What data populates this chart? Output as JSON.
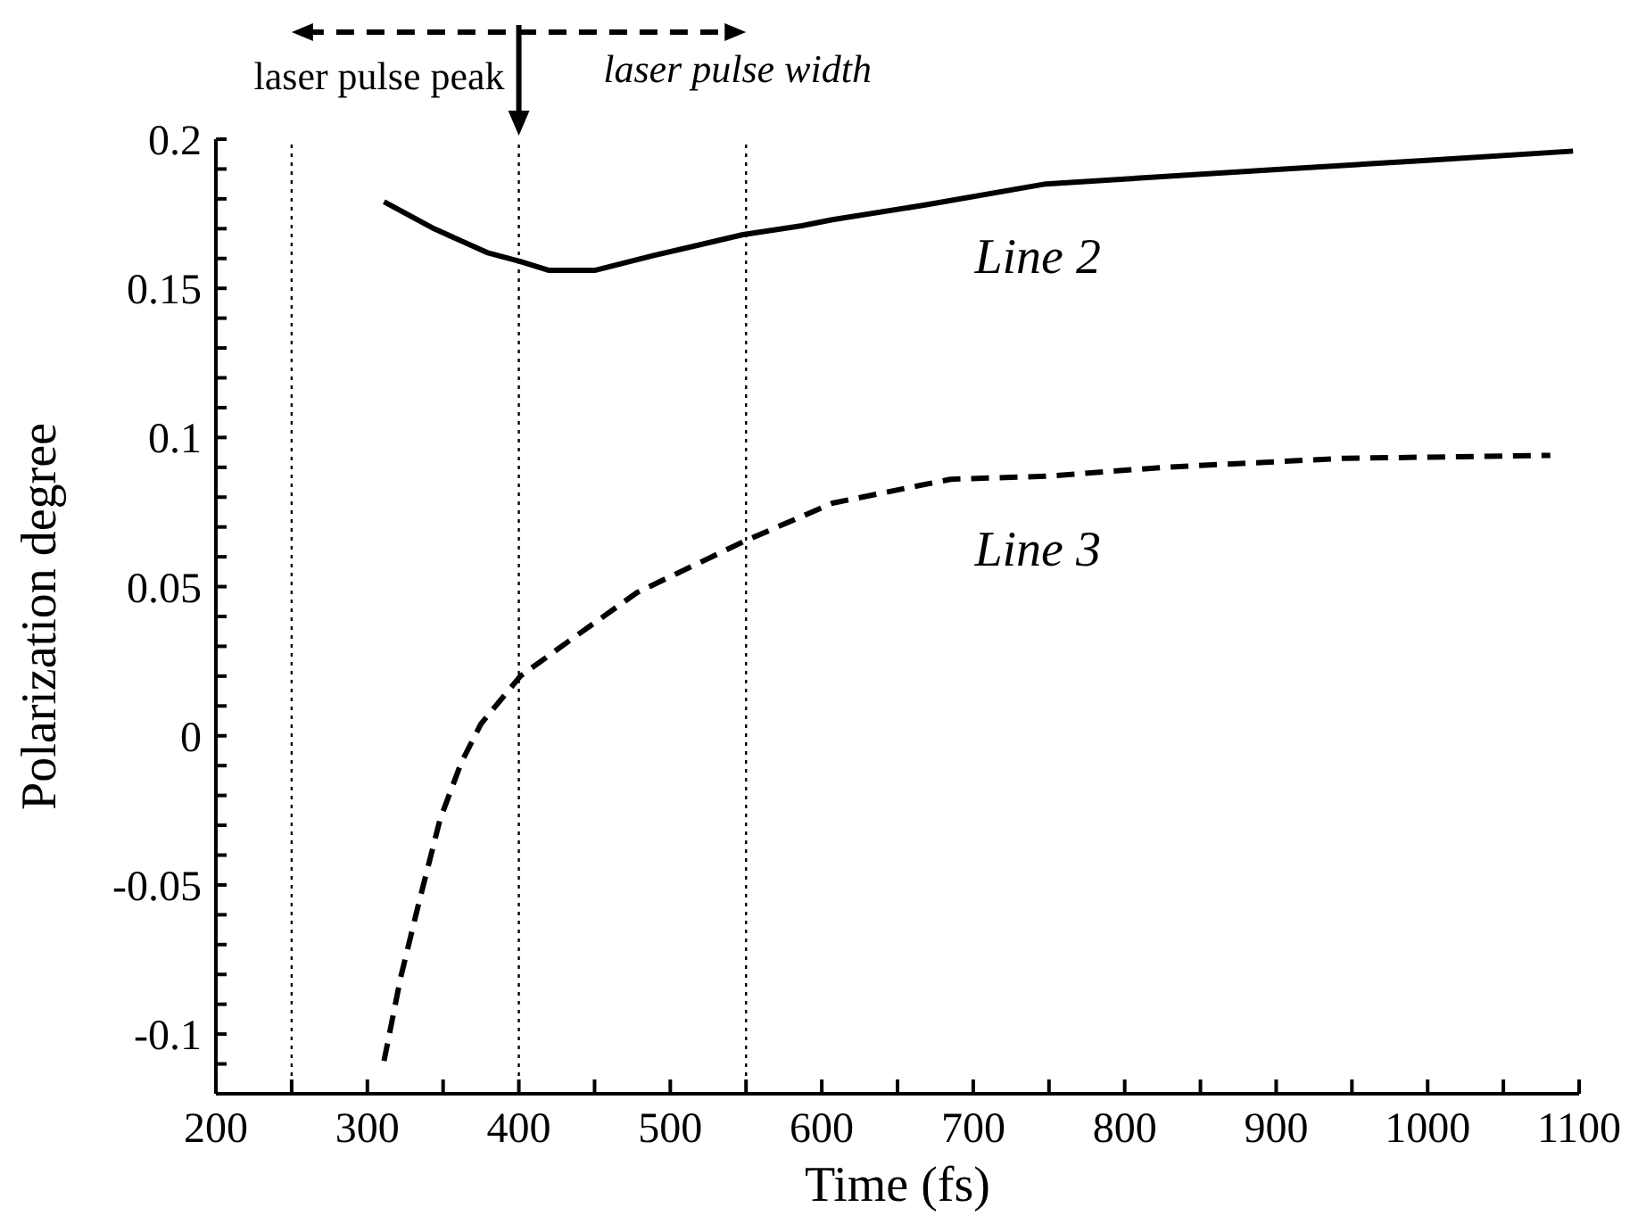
{
  "chart_data": {
    "type": "line",
    "xlabel": "Time (fs)",
    "ylabel": "Polarization degree",
    "xlim": [
      200,
      1100
    ],
    "xticks": [
      200,
      {
        "value": 250,
        "label": null
      },
      300,
      {
        "value": 350,
        "label": null
      },
      400,
      {
        "value": 450,
        "label": null
      },
      500,
      {
        "value": 550,
        "label": null
      },
      600,
      {
        "value": 650,
        "label": null
      },
      700,
      {
        "value": 750,
        "label": null
      },
      800,
      {
        "value": 850,
        "label": null
      },
      900,
      {
        "value": 950,
        "label": null
      },
      1000,
      {
        "value": 1050,
        "label": null
      },
      1100
    ],
    "ylim": [
      -0.12,
      0.2
    ],
    "yticks": [
      {
        "value": -0.12,
        "label": null
      },
      {
        "value": -0.11,
        "label": null
      },
      -0.1,
      {
        "value": -0.09,
        "label": null
      },
      {
        "value": -0.08,
        "label": null
      },
      {
        "value": -0.07,
        "label": null
      },
      {
        "value": -0.06,
        "label": null
      },
      -0.05,
      {
        "value": -0.04,
        "label": null
      },
      {
        "value": -0.03,
        "label": null
      },
      {
        "value": -0.02,
        "label": null
      },
      {
        "value": -0.01,
        "label": null
      },
      0,
      {
        "value": 0.01,
        "label": null
      },
      {
        "value": 0.02,
        "label": null
      },
      {
        "value": 0.03,
        "label": null
      },
      {
        "value": 0.04,
        "label": null
      },
      0.05,
      {
        "value": 0.06,
        "label": null
      },
      {
        "value": 0.07,
        "label": null
      },
      {
        "value": 0.08,
        "label": null
      },
      {
        "value": 0.09,
        "label": null
      },
      0.1,
      {
        "value": 0.11,
        "label": null
      },
      {
        "value": 0.12,
        "label": null
      },
      {
        "value": 0.13,
        "label": null
      },
      {
        "value": 0.14,
        "label": null
      },
      0.15,
      {
        "value": 0.16,
        "label": null
      },
      {
        "value": 0.17,
        "label": null
      },
      {
        "value": 0.18,
        "label": null
      },
      {
        "value": 0.19,
        "label": null
      },
      0.2
    ],
    "marker": "none",
    "ref_lines": [
      {
        "axis": "x",
        "value": 250,
        "line_style": "dotted",
        "color": "#000000"
      },
      {
        "axis": "x",
        "value": 400,
        "line_style": "dotted",
        "color": "#000000"
      },
      {
        "axis": "x",
        "value": 550,
        "line_style": "dotted",
        "color": "#000000"
      }
    ],
    "annotations": [
      "laser pulse peak",
      "laser pulse width"
    ],
    "series": [
      {
        "name": "Line 2",
        "color": "#000000",
        "line_style": "solid",
        "x": [
          311,
          344,
          379,
          401,
          420,
          450,
          489,
          548,
          587,
          607,
          669,
          748,
          905,
          1002,
          1096
        ],
        "values": [
          0.179,
          0.17,
          0.162,
          0.159,
          0.156,
          0.156,
          0.161,
          0.168,
          0.171,
          0.173,
          0.178,
          0.185,
          0.19,
          0.193,
          0.196
        ]
      },
      {
        "name": "Line 3",
        "color": "#000000",
        "line_style": "dashed",
        "x": [
          311,
          322,
          334,
          348,
          362,
          375,
          401,
          431,
          478,
          548,
          607,
          685,
          748,
          826,
          944,
          1081
        ],
        "values": [
          -0.109,
          -0.081,
          -0.056,
          -0.028,
          -0.009,
          0.004,
          0.02,
          0.031,
          0.048,
          0.065,
          0.078,
          0.086,
          0.087,
          0.09,
          0.093,
          0.094
        ]
      }
    ]
  }
}
